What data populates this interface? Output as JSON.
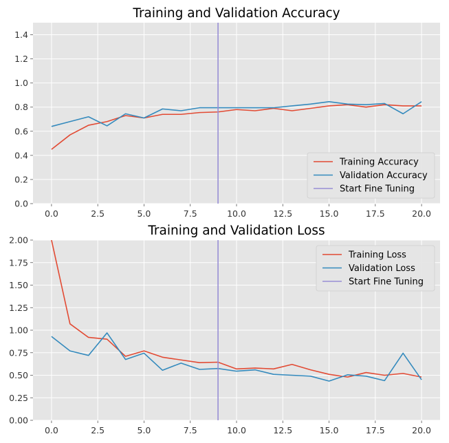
{
  "chart_data": [
    {
      "type": "line",
      "title": "Training and Validation Accuracy",
      "xlabel": "",
      "ylabel": "",
      "xlim": [
        -1,
        21
      ],
      "ylim": [
        0.0,
        1.5
      ],
      "xticks": [
        "0.0",
        "2.5",
        "5.0",
        "7.5",
        "10.0",
        "12.5",
        "15.0",
        "17.5",
        "20.0"
      ],
      "yticks": [
        "0.0",
        "0.2",
        "0.4",
        "0.6",
        "0.8",
        "1.0",
        "1.2",
        "1.4"
      ],
      "grid": true,
      "legend_position": "lower-right",
      "x": [
        0,
        1,
        2,
        3,
        4,
        5,
        6,
        7,
        8,
        9,
        10,
        11,
        12,
        13,
        14,
        15,
        16,
        17,
        18,
        19,
        20
      ],
      "series": [
        {
          "name": "Training Accuracy",
          "color": "#e24a33",
          "values": [
            0.45,
            0.57,
            0.65,
            0.68,
            0.73,
            0.71,
            0.74,
            0.74,
            0.755,
            0.76,
            0.78,
            0.77,
            0.79,
            0.77,
            0.79,
            0.81,
            0.82,
            0.8,
            0.82,
            0.81,
            0.81
          ]
        },
        {
          "name": "Validation Accuracy",
          "color": "#348abd",
          "values": [
            0.64,
            0.68,
            0.72,
            0.645,
            0.745,
            0.71,
            0.785,
            0.77,
            0.795,
            0.795,
            0.795,
            0.795,
            0.795,
            0.81,
            0.825,
            0.845,
            0.825,
            0.82,
            0.83,
            0.745,
            0.845
          ]
        }
      ],
      "vline": {
        "name": "Start Fine Tuning",
        "x": 9,
        "color": "#988ed5"
      }
    },
    {
      "type": "line",
      "title": "Training and Validation Loss",
      "xlabel": "",
      "ylabel": "",
      "xlim": [
        -1,
        21
      ],
      "ylim": [
        0.0,
        2.0
      ],
      "xticks": [
        "0.0",
        "2.5",
        "5.0",
        "7.5",
        "10.0",
        "12.5",
        "15.0",
        "17.5",
        "20.0"
      ],
      "yticks": [
        "0.00",
        "0.25",
        "0.50",
        "0.75",
        "1.00",
        "1.25",
        "1.50",
        "1.75",
        "2.00"
      ],
      "grid": true,
      "legend_position": "upper-right",
      "x": [
        0,
        1,
        2,
        3,
        4,
        5,
        6,
        7,
        8,
        9,
        10,
        11,
        12,
        13,
        14,
        15,
        16,
        17,
        18,
        19,
        20
      ],
      "series": [
        {
          "name": "Training Loss",
          "color": "#e24a33",
          "values": [
            2.0,
            1.07,
            0.92,
            0.9,
            0.71,
            0.77,
            0.7,
            0.67,
            0.64,
            0.645,
            0.57,
            0.58,
            0.57,
            0.62,
            0.56,
            0.51,
            0.48,
            0.53,
            0.5,
            0.52,
            0.48
          ]
        },
        {
          "name": "Validation Loss",
          "color": "#348abd",
          "values": [
            0.93,
            0.77,
            0.72,
            0.97,
            0.675,
            0.745,
            0.555,
            0.635,
            0.565,
            0.575,
            0.545,
            0.56,
            0.51,
            0.5,
            0.49,
            0.435,
            0.505,
            0.49,
            0.44,
            0.745,
            0.45
          ]
        }
      ],
      "vline": {
        "name": "Start Fine Tuning",
        "x": 9,
        "color": "#988ed5"
      }
    }
  ]
}
